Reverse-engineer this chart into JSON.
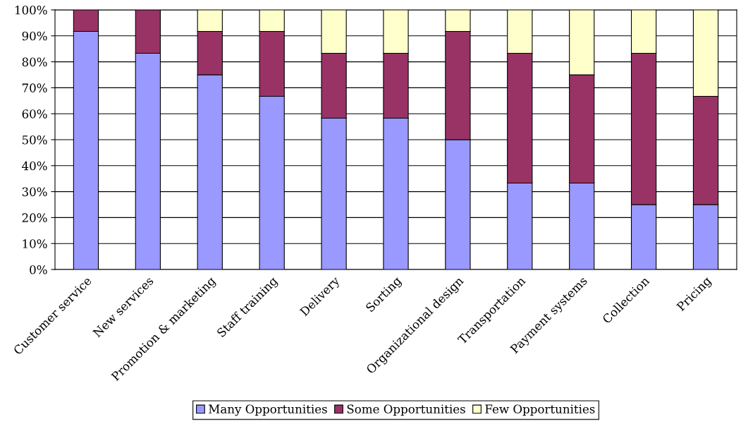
{
  "chart_data": {
    "type": "bar",
    "stacked": true,
    "categories": [
      "Customer service",
      "New services",
      "Promotion & marketing",
      "Staff training",
      "Delivery",
      "Sorting",
      "Organizational design",
      "Transportation",
      "Payment systems",
      "Collection",
      "Pricing"
    ],
    "series": [
      {
        "name": "Many Opportunities",
        "color": "#9999ff",
        "values": [
          91.7,
          83.3,
          75,
          66.7,
          58.3,
          58.3,
          50,
          33.3,
          33.3,
          25,
          25
        ]
      },
      {
        "name": "Some Opportunities",
        "color": "#993366",
        "values": [
          8.3,
          16.7,
          16.7,
          25,
          25,
          25,
          41.7,
          50,
          41.7,
          58.3,
          41.7
        ]
      },
      {
        "name": "Few Opportunities",
        "color": "#ffffcc",
        "values": [
          null,
          null,
          8.3,
          8.3,
          16.7,
          16.7,
          8.3,
          16.7,
          25,
          16.7,
          33.3
        ]
      }
    ],
    "ylim": [
      0,
      100
    ],
    "yticks": [
      {
        "value": 0,
        "label": "0%"
      },
      {
        "value": 10,
        "label": "10%"
      },
      {
        "value": 20,
        "label": "20%"
      },
      {
        "value": 30,
        "label": "30%"
      },
      {
        "value": 40,
        "label": "40%"
      },
      {
        "value": 50,
        "label": "50%"
      },
      {
        "value": 60,
        "label": "60%"
      },
      {
        "value": 70,
        "label": "70%"
      },
      {
        "value": 80,
        "label": "80%"
      },
      {
        "value": 90,
        "label": "90%"
      },
      {
        "value": 100,
        "label": "100%"
      }
    ],
    "grid": "y",
    "legend": "bottom"
  }
}
